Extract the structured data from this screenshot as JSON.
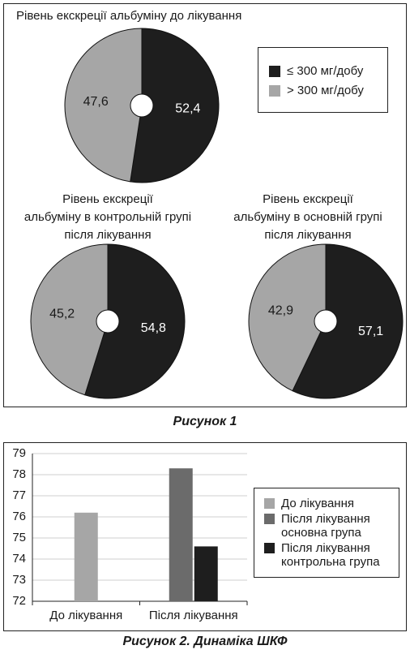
{
  "chart_data": [
    {
      "type": "pie",
      "title": "Рівень екскреції альбуміну до лікування",
      "categories": [
        "≤ 300 мг/добу",
        "> 300 мг/добу"
      ],
      "values": [
        52.4,
        47.6
      ],
      "value_labels": [
        "52,4",
        "47,6"
      ],
      "colors": [
        "#1e1e1e",
        "#a6a6a6"
      ],
      "legend": "right"
    },
    {
      "type": "pie",
      "title": [
        "Рівень екскреції",
        "альбуміну в контрольній групі",
        "після лікування"
      ],
      "values": [
        54.8,
        45.2
      ],
      "value_labels": [
        "54,8",
        "45,2"
      ],
      "colors": [
        "#1e1e1e",
        "#a6a6a6"
      ]
    },
    {
      "type": "pie",
      "title": [
        "Рівень екскреції",
        "альбуміну в основній групі",
        "після лікування"
      ],
      "values": [
        57.1,
        42.9
      ],
      "value_labels": [
        "57,1",
        "42,9"
      ],
      "colors": [
        "#1e1e1e",
        "#a6a6a6"
      ]
    },
    {
      "type": "bar",
      "categories": [
        "До лікування",
        "Після лікування"
      ],
      "series": [
        {
          "name": "До лікування",
          "color": "#a6a6a6",
          "values": [
            76.2,
            null
          ]
        },
        {
          "name": "Після лікування основна група",
          "color": "#6b6b6b",
          "values": [
            null,
            78.3
          ]
        },
        {
          "name": "Після лікування контрольна група",
          "color": "#1e1e1e",
          "values": [
            null,
            74.6
          ]
        }
      ],
      "ylim": [
        72,
        79
      ],
      "yticks": [
        72,
        73,
        74,
        75,
        76,
        77,
        78,
        79
      ],
      "grid": true,
      "legend": "right"
    }
  ],
  "captions": [
    "Рисунок 1",
    "Рисунок 2. Динаміка ШКФ"
  ]
}
